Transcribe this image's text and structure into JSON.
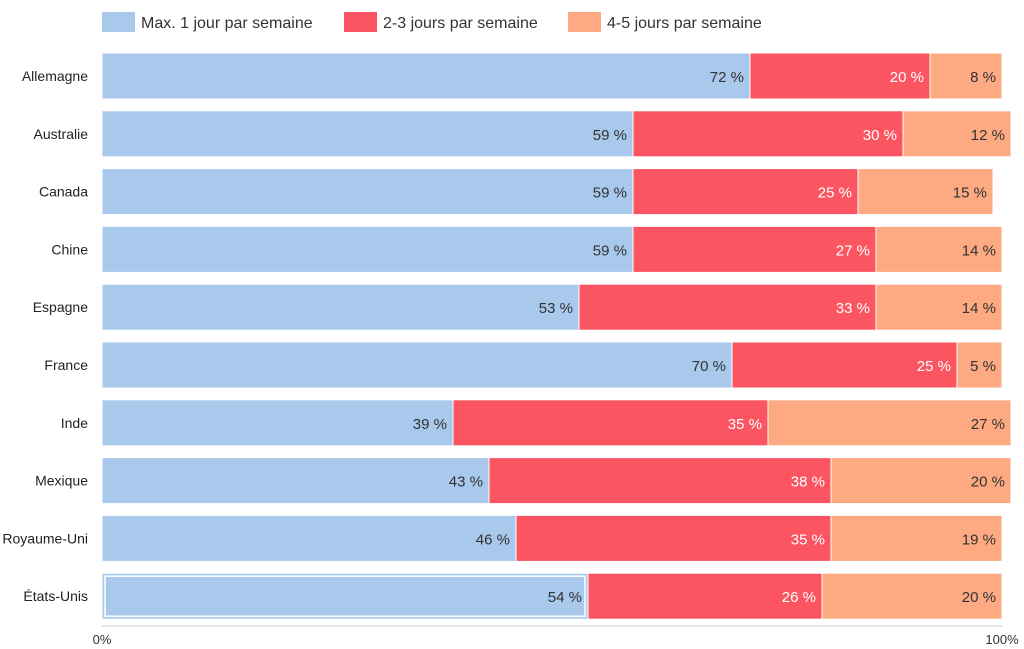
{
  "chart_data": {
    "type": "bar",
    "orientation": "horizontal",
    "stacked": true,
    "categories": [
      "Allemagne",
      "Australie",
      "Canada",
      "Chine",
      "Espagne",
      "France",
      "Inde",
      "Mexique",
      "Royaume-Uni",
      "États-Unis"
    ],
    "series": [
      {
        "name": "Max. 1 jour par semaine",
        "values": [
          72,
          59,
          59,
          59,
          53,
          70,
          39,
          43,
          46,
          54
        ]
      },
      {
        "name": "2-3 jours par semaine",
        "values": [
          20,
          30,
          25,
          27,
          33,
          25,
          35,
          38,
          35,
          26
        ]
      },
      {
        "name": "4-5 jours par semaine",
        "values": [
          8,
          12,
          15,
          14,
          14,
          5,
          27,
          20,
          19,
          20
        ]
      }
    ],
    "value_suffix": " %",
    "xlim": [
      0,
      100
    ],
    "x_tick_labels": [
      "0%",
      "100%"
    ],
    "legend_position": "top",
    "grid": false,
    "highlighted_category": "États-Unis",
    "colors": [
      "#a8c8ec",
      "#fb5562",
      "#fdaa82"
    ],
    "label_colors": [
      "#333333",
      "#ffffff",
      "#333333"
    ]
  }
}
